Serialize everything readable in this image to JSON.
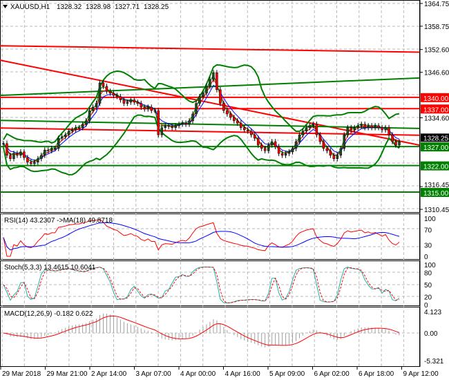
{
  "header": {
    "symbol": "XAUUSD,H1",
    "open": "1328.32",
    "high": "1328.98",
    "low": "1327.71",
    "close": "1328.25"
  },
  "indicators": {
    "rsi_label": "RSI(14) 43.2307  ->MA(18) 49.8718",
    "stoch_label": "Stoch(5,3,3) 13.4615 10.6041",
    "macd_label": "MACD(12,26,9) -0.182 0.622"
  },
  "colors": {
    "bull": "#1e4d1e",
    "bear": "#ff0000",
    "resistance": "#ff0000",
    "support": "#008000",
    "rsi": "#ff0000",
    "rsi_ma": "#0000ff",
    "stoch_main": "#20b2aa",
    "stoch_signal": "#ff0000",
    "macd_hist": "#a0a0a0",
    "macd_signal": "#ff0000"
  },
  "chart_data": [
    {
      "type": "candlestick",
      "title": "XAUUSD,H1",
      "ylim": [
        1310.45,
        1364.75
      ],
      "y_ticks": [
        "1364.75",
        "1358.75",
        "1352.60",
        "1346.60",
        "1334.60",
        "1316.45",
        "1310.45"
      ],
      "x_ticks": [
        "29 Mar 2018",
        "29 Mar 21:00",
        "2 Apr 14:00",
        "3 Apr 07:00",
        "4 Apr 00:00",
        "4 Apr 16:00",
        "5 Apr 09:00",
        "6 Apr 02:00",
        "6 Apr 18:00",
        "9 Apr 12:00"
      ],
      "grid": true,
      "current_price": "1328.25",
      "closes": [
        1327.8,
        1324.7,
        1323.8,
        1325.2,
        1324.7,
        1325.6,
        1324.1,
        1322.9,
        1322.5,
        1322.9,
        1323.8,
        1324.7,
        1326.1,
        1325.9,
        1326.5,
        1326.5,
        1329.2,
        1329.6,
        1330.1,
        1331.1,
        1331.4,
        1332.0,
        1332.0,
        1332.9,
        1333.8,
        1336.5,
        1337.4,
        1338.4,
        1343.8,
        1342.9,
        1341.6,
        1341.1,
        1340.5,
        1340.2,
        1339.3,
        1338.4,
        1338.7,
        1339.3,
        1338.7,
        1338.4,
        1337.4,
        1336.9,
        1337.4,
        1336.5,
        1336.5,
        1330.1,
        1332.0,
        1332.5,
        1332.3,
        1332.0,
        1332.5,
        1332.9,
        1333.2,
        1332.9,
        1333.8,
        1335.6,
        1338.4,
        1340.2,
        1341.1,
        1342.9,
        1344.7,
        1346.5,
        1342.0,
        1338.4,
        1336.5,
        1335.6,
        1334.7,
        1333.8,
        1333.2,
        1332.0,
        1331.4,
        1331.1,
        1330.1,
        1329.2,
        1327.4,
        1326.5,
        1325.9,
        1327.4,
        1328.3,
        1327.0,
        1325.2,
        1324.7,
        1325.2,
        1325.6,
        1326.5,
        1328.3,
        1330.1,
        1331.1,
        1332.0,
        1332.5,
        1332.9,
        1330.1,
        1328.3,
        1326.5,
        1325.9,
        1324.7,
        1323.8,
        1324.7,
        1326.5,
        1330.1,
        1332.0,
        1331.4,
        1332.0,
        1332.5,
        1332.9,
        1332.0,
        1332.5,
        1332.0,
        1332.5,
        1332.0,
        1331.4,
        1332.0,
        1330.1,
        1328.3,
        1327.4,
        1328.25
      ],
      "levels": [
        {
          "label": "1340.00",
          "price": 1340.0,
          "kind": "resistance"
        },
        {
          "label": "1337.00",
          "price": 1337.0,
          "kind": "resistance"
        },
        {
          "label": "1327.00",
          "price": 1327.0,
          "kind": "support"
        },
        {
          "label": "1322.00",
          "price": 1322.0,
          "kind": "support"
        },
        {
          "label": "1315.00",
          "price": 1315.0,
          "kind": "support"
        }
      ],
      "trendlines": [
        {
          "kind": "resistance",
          "from": 1353.6,
          "to": 1351.9
        },
        {
          "kind": "resistance",
          "from": 1349.8,
          "to": 1327.4
        },
        {
          "kind": "resistance",
          "from": 1331.9,
          "to": 1330.0
        },
        {
          "kind": "support",
          "from": 1340.5,
          "to": 1345.1
        },
        {
          "kind": "support",
          "from": 1333.9,
          "to": 1331.8
        }
      ]
    },
    {
      "type": "line",
      "title": "RSI(14)",
      "ylim": [
        0,
        100
      ],
      "y_ticks": [
        "100",
        "70",
        "30",
        "0"
      ]
    },
    {
      "type": "line",
      "title": "Stoch(5,3,3)",
      "ylim": [
        0,
        100
      ],
      "y_ticks": [
        "100",
        "80",
        "50",
        "20",
        "0"
      ]
    },
    {
      "type": "bar",
      "title": "MACD(12,26,9)",
      "ylim": [
        -5.321,
        4.123
      ],
      "y_ticks": [
        "4.123",
        "0.00",
        "-5.321"
      ]
    }
  ]
}
